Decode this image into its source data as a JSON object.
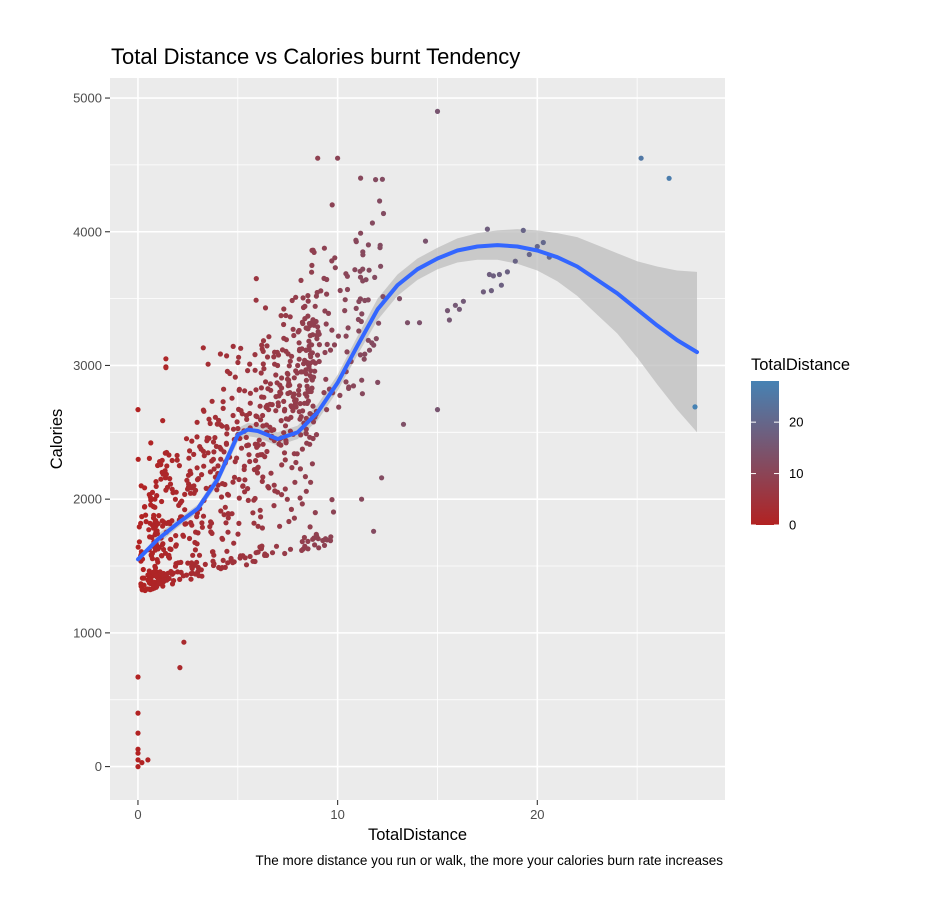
{
  "chart_data": {
    "type": "scatter",
    "title": "Total Distance vs Calories burnt Tendency",
    "caption": "The more distance you run or walk, the more your calories burn rate increases",
    "xlabel": "TotalDistance",
    "ylabel": "Calories",
    "xlim": [
      -1.4,
      29.4
    ],
    "ylim": [
      -250,
      5150
    ],
    "x_ticks": [
      0,
      10,
      20
    ],
    "y_ticks": [
      0,
      1000,
      2000,
      3000,
      4000,
      5000
    ],
    "grid": true,
    "legend": {
      "title": "TotalDistance",
      "position": "right",
      "ticks": [
        0,
        10,
        20
      ],
      "range": [
        0,
        28
      ],
      "color_low": "#b22222",
      "color_high": "#4682b4"
    },
    "smooth": {
      "color": "#3366ff",
      "ribbon_color": "#bebebe",
      "points": [
        [
          0,
          1550,
          0
        ],
        [
          1,
          1700,
          40
        ],
        [
          2,
          1820,
          30
        ],
        [
          3,
          1930,
          30
        ],
        [
          4,
          2150,
          40
        ],
        [
          5,
          2480,
          50
        ],
        [
          5.5,
          2520,
          50
        ],
        [
          6,
          2510,
          50
        ],
        [
          7,
          2450,
          50
        ],
        [
          8,
          2500,
          50
        ],
        [
          9,
          2650,
          60
        ],
        [
          10,
          2870,
          60
        ],
        [
          11,
          3150,
          70
        ],
        [
          12,
          3420,
          80
        ],
        [
          13,
          3600,
          80
        ],
        [
          14,
          3720,
          80
        ],
        [
          15,
          3800,
          80
        ],
        [
          16,
          3860,
          90
        ],
        [
          17,
          3890,
          100
        ],
        [
          18,
          3900,
          110
        ],
        [
          19,
          3890,
          130
        ],
        [
          20,
          3860,
          150
        ],
        [
          21,
          3810,
          180
        ],
        [
          22,
          3740,
          220
        ],
        [
          23,
          3640,
          260
        ],
        [
          24,
          3540,
          300
        ],
        [
          25,
          3420,
          360
        ],
        [
          26,
          3300,
          440
        ],
        [
          27,
          3190,
          520
        ],
        [
          28,
          3100,
          600
        ]
      ]
    },
    "points_summary": "Dense cloud between TotalDistance 0-12 and Calories 700-4550, sparse points beyond",
    "outlier_points": [
      [
        0,
        0
      ],
      [
        0,
        50
      ],
      [
        0,
        100
      ],
      [
        0,
        130
      ],
      [
        0,
        250
      ],
      [
        0,
        400
      ],
      [
        0,
        670
      ],
      [
        0.2,
        30
      ],
      [
        0.5,
        50
      ],
      [
        0,
        2670
      ],
      [
        2.1,
        740
      ],
      [
        2.3,
        930
      ],
      [
        1.4,
        3050
      ],
      [
        1.4,
        2990
      ],
      [
        15,
        4900
      ],
      [
        15,
        2670
      ],
      [
        13.3,
        2560
      ],
      [
        12.2,
        2160
      ],
      [
        11.8,
        1760
      ],
      [
        11.2,
        2000
      ],
      [
        9.0,
        4550
      ],
      [
        10.0,
        4550
      ],
      [
        11.9,
        4390
      ],
      [
        12.1,
        4230
      ],
      [
        14.4,
        3930
      ],
      [
        14.1,
        3320
      ],
      [
        13.5,
        3320
      ],
      [
        13.1,
        3500
      ],
      [
        15.5,
        3410
      ],
      [
        15.6,
        3340
      ],
      [
        15.9,
        3450
      ],
      [
        16.1,
        3420
      ],
      [
        16.3,
        3480
      ],
      [
        17.3,
        3550
      ],
      [
        17.6,
        3680
      ],
      [
        17.7,
        3560
      ],
      [
        17.8,
        3670
      ],
      [
        18.1,
        3680
      ],
      [
        18.2,
        3600
      ],
      [
        18.5,
        3700
      ],
      [
        17.5,
        4020
      ],
      [
        18.9,
        3780
      ],
      [
        19.3,
        4010
      ],
      [
        19.6,
        3830
      ],
      [
        20.0,
        3890
      ],
      [
        20.3,
        3920
      ],
      [
        20.6,
        3810
      ],
      [
        25.2,
        4550
      ],
      [
        26.6,
        4400
      ],
      [
        27.9,
        2690
      ]
    ]
  }
}
